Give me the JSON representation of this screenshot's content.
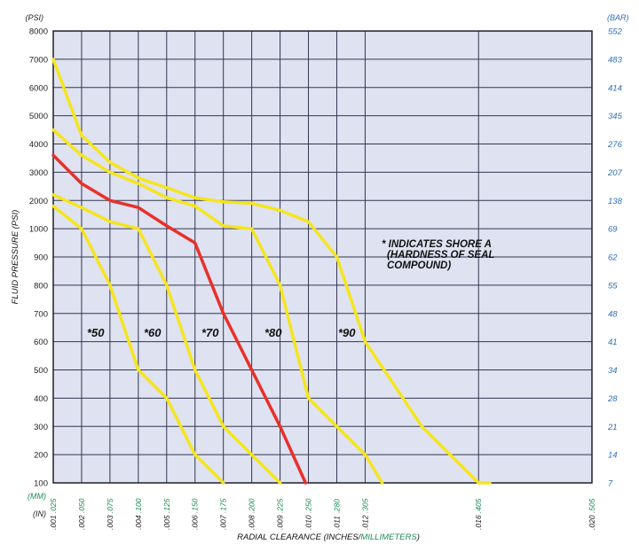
{
  "chart_data": {
    "type": "line",
    "title": "",
    "xlabel_prefix": "RADIAL CLEARANCE (INCHES/",
    "xlabel_suffix": "MILLIMETERS",
    "xlabel_close": ")",
    "ylabel": "FLUID PRESSURE (PSI)",
    "left_unit": "(PSI)",
    "right_unit": "(BAR)",
    "x_unit_mm": "(MM)",
    "x_unit_in": "(IN)",
    "xlim": [
      0.001,
      0.02
    ],
    "y_ticks_psi": [
      "8000",
      "7000",
      "6000",
      "5000",
      "4000",
      "3000",
      "2000",
      "1000",
      "900",
      "800",
      "700",
      "600",
      "500",
      "400",
      "300",
      "200",
      "100"
    ],
    "y_ticks_bar": [
      "552",
      "483",
      "414",
      "345",
      "276",
      "207",
      "138",
      "69",
      "62",
      "55",
      "48",
      "41",
      "34",
      "28",
      "21",
      "14",
      "7"
    ],
    "x_ticks": [
      {
        "inches": ".001",
        "mm": ".025",
        "value": 0.001
      },
      {
        "inches": ".002",
        "mm": ".050",
        "value": 0.002
      },
      {
        "inches": ".003",
        "mm": ".075",
        "value": 0.003
      },
      {
        "inches": ".004",
        "mm": ".100",
        "value": 0.004
      },
      {
        "inches": ".005",
        "mm": ".125",
        "value": 0.005
      },
      {
        "inches": ".006",
        "mm": ".150",
        "value": 0.006
      },
      {
        "inches": ".007",
        "mm": ".175",
        "value": 0.007
      },
      {
        "inches": ".008",
        "mm": ".200",
        "value": 0.008
      },
      {
        "inches": ".009",
        "mm": ".225",
        "value": 0.009
      },
      {
        "inches": ".010",
        "mm": ".250",
        "value": 0.01
      },
      {
        "inches": ".011",
        "mm": ".280",
        "value": 0.011
      },
      {
        "inches": ".012",
        "mm": ".305",
        "value": 0.012
      },
      {
        "inches": ".016",
        "mm": ".405",
        "value": 0.016
      },
      {
        "inches": ".020",
        "mm": ".505",
        "value": 0.02
      }
    ],
    "annotation": [
      "* INDICATES SHORE A",
      "(HARDNESS OF SEAL",
      "COMPOUND)"
    ],
    "series": [
      {
        "name": "*50",
        "color": "#f5e51e",
        "points": [
          [
            0.001,
            1800
          ],
          [
            0.002,
            1000
          ],
          [
            0.003,
            800
          ],
          [
            0.004,
            500
          ],
          [
            0.005,
            400
          ],
          [
            0.006,
            200
          ],
          [
            0.007,
            100
          ]
        ]
      },
      {
        "name": "*60",
        "color": "#f5e51e",
        "points": [
          [
            0.001,
            2200
          ],
          [
            0.002,
            1750
          ],
          [
            0.003,
            1250
          ],
          [
            0.004,
            1000
          ],
          [
            0.005,
            800
          ],
          [
            0.006,
            500
          ],
          [
            0.007,
            300
          ],
          [
            0.008,
            200
          ],
          [
            0.009,
            100
          ]
        ]
      },
      {
        "name": "*70",
        "color": "#e8302a",
        "points": [
          [
            0.001,
            3600
          ],
          [
            0.002,
            2600
          ],
          [
            0.003,
            2000
          ],
          [
            0.004,
            1750
          ],
          [
            0.005,
            1100
          ],
          [
            0.006,
            950
          ],
          [
            0.007,
            700
          ],
          [
            0.008,
            500
          ],
          [
            0.009,
            300
          ],
          [
            0.0099,
            100
          ]
        ]
      },
      {
        "name": "*80",
        "color": "#f5e51e",
        "points": [
          [
            0.001,
            4500
          ],
          [
            0.002,
            3600
          ],
          [
            0.003,
            3000
          ],
          [
            0.004,
            2600
          ],
          [
            0.005,
            2100
          ],
          [
            0.006,
            1800
          ],
          [
            0.007,
            1100
          ],
          [
            0.008,
            1000
          ],
          [
            0.009,
            800
          ],
          [
            0.01,
            400
          ],
          [
            0.011,
            300
          ],
          [
            0.012,
            200
          ],
          [
            0.0126,
            100
          ]
        ]
      },
      {
        "name": "*90",
        "color": "#f5e51e",
        "points": [
          [
            0.001,
            7000
          ],
          [
            0.002,
            4300
          ],
          [
            0.003,
            3350
          ],
          [
            0.004,
            2800
          ],
          [
            0.005,
            2450
          ],
          [
            0.006,
            2100
          ],
          [
            0.007,
            1950
          ],
          [
            0.008,
            1900
          ],
          [
            0.009,
            1650
          ],
          [
            0.01,
            1250
          ],
          [
            0.011,
            900
          ],
          [
            0.012,
            600
          ],
          [
            0.013,
            450
          ],
          [
            0.014,
            300
          ],
          [
            0.016,
            100
          ],
          [
            0.0164,
            100
          ]
        ]
      }
    ]
  }
}
